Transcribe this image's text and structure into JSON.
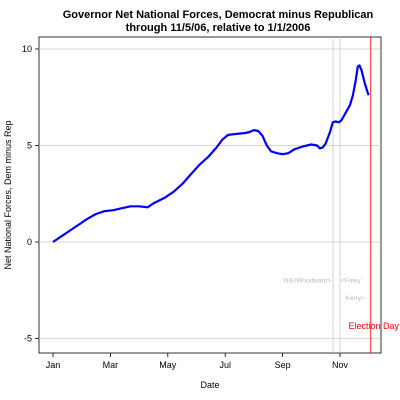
{
  "chart_data": {
    "type": "line",
    "title": "Governor Net National Forces, Democrat minus Republican",
    "subtitle": "through 11/5/06, relative to 1/1/2006",
    "xlabel": "Date",
    "ylabel": "Net National Forces, Dem minus Rep",
    "x_ticks": [
      "Jan",
      "Mar",
      "May",
      "Jul",
      "Sep",
      "Nov"
    ],
    "y_ticks": [
      "-5",
      "0",
      "5",
      "10"
    ],
    "y_tick_values": [
      -5,
      0,
      5,
      10
    ],
    "ylim": [
      -5.5,
      10.5
    ],
    "xlim_months": [
      -0.1,
      11.0
    ],
    "grid": "horizontal",
    "series": [
      {
        "color": "#0000ff",
        "points": [
          [
            0.0,
            0.0
          ],
          [
            0.3,
            0.3
          ],
          [
            0.6,
            0.6
          ],
          [
            0.9,
            0.9
          ],
          [
            1.2,
            1.2
          ],
          [
            1.5,
            1.45
          ],
          [
            1.8,
            1.6
          ],
          [
            2.1,
            1.65
          ],
          [
            2.4,
            1.75
          ],
          [
            2.7,
            1.85
          ],
          [
            3.0,
            1.85
          ],
          [
            3.3,
            1.8
          ],
          [
            3.5,
            2.0
          ],
          [
            3.9,
            2.3
          ],
          [
            4.2,
            2.6
          ],
          [
            4.5,
            3.0
          ],
          [
            4.8,
            3.5
          ],
          [
            5.1,
            4.0
          ],
          [
            5.4,
            4.4
          ],
          [
            5.7,
            4.9
          ],
          [
            5.9,
            5.3
          ],
          [
            6.1,
            5.55
          ],
          [
            6.4,
            5.6
          ],
          [
            6.7,
            5.65
          ],
          [
            6.85,
            5.7
          ],
          [
            7.0,
            5.8
          ],
          [
            7.15,
            5.75
          ],
          [
            7.3,
            5.5
          ],
          [
            7.45,
            5.0
          ],
          [
            7.6,
            4.7
          ],
          [
            7.8,
            4.6
          ],
          [
            8.0,
            4.55
          ],
          [
            8.2,
            4.6
          ],
          [
            8.4,
            4.8
          ],
          [
            8.7,
            4.95
          ],
          [
            9.0,
            5.05
          ],
          [
            9.2,
            5.0
          ],
          [
            9.3,
            4.85
          ],
          [
            9.4,
            4.9
          ],
          [
            9.5,
            5.1
          ],
          [
            9.65,
            5.7
          ],
          [
            9.75,
            6.2
          ],
          [
            9.85,
            6.25
          ],
          [
            9.95,
            6.2
          ],
          [
            10.05,
            6.3
          ],
          [
            10.2,
            6.7
          ],
          [
            10.35,
            7.1
          ],
          [
            10.45,
            7.6
          ],
          [
            10.55,
            8.4
          ],
          [
            10.62,
            9.1
          ],
          [
            10.68,
            9.15
          ],
          [
            10.75,
            8.9
          ],
          [
            10.85,
            8.3
          ],
          [
            10.95,
            7.8
          ],
          [
            11.0,
            7.6
          ]
        ]
      }
    ],
    "events": [
      {
        "label": "NIE/Woodward>",
        "x": 9.76,
        "color": "#c8c8c8",
        "label_y": -2.1
      },
      {
        "label": "<Foley",
        "x": 10.0,
        "color": "#c8c8c8",
        "label_y": -2.1
      },
      {
        "label": "Kerry>",
        "x": 10.05,
        "color": "#c8c8c8",
        "label_y": -3.0
      },
      {
        "label": "Election Day",
        "x": 11.07,
        "color": "#ff0000",
        "label_y": -4.5
      }
    ]
  }
}
